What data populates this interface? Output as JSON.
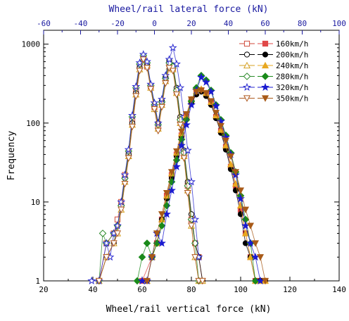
{
  "chart_data": {
    "type": "scatter",
    "x2label": "Wheel/rail lateral force (kN)",
    "xlabel": "Wheel/rail vertical force (kN)",
    "ylabel": "Frequency",
    "x2lim": [
      -60,
      100
    ],
    "x2ticks": [
      "-60",
      "-40",
      "-20",
      "0",
      "20",
      "40",
      "60",
      "80",
      "100"
    ],
    "xlim": [
      20,
      140
    ],
    "xticks": [
      "20",
      "40",
      "60",
      "80",
      "100",
      "120",
      "140"
    ],
    "ylim": [
      1,
      1500
    ],
    "yscale": "log",
    "yticks": [
      "1",
      "10",
      "100",
      "1000"
    ],
    "grid": false,
    "legend_position": "top-right",
    "lateral_series": [
      {
        "name": "160km/h",
        "marker": "square-open",
        "color": "#d04a3a",
        "x": [
          -30,
          -26,
          -22,
          -20,
          -18,
          -16,
          -14,
          -12,
          -10,
          -8,
          -6,
          -4,
          -2,
          0,
          2,
          4,
          6,
          8,
          10,
          12,
          14,
          16,
          18,
          20,
          22,
          24,
          26
        ],
        "y": [
          1,
          3,
          4,
          6,
          10,
          22,
          42,
          110,
          260,
          520,
          680,
          520,
          290,
          160,
          90,
          180,
          360,
          560,
          500,
          250,
          110,
          40,
          16,
          6,
          3,
          2,
          1
        ]
      },
      {
        "name": "200km/h",
        "marker": "circle-open",
        "color": "#000000",
        "x": [
          -30,
          -26,
          -22,
          -20,
          -18,
          -16,
          -14,
          -12,
          -10,
          -8,
          -6,
          -4,
          -2,
          0,
          2,
          4,
          6,
          8,
          10,
          12,
          14,
          16,
          18,
          20,
          22,
          24,
          26
        ],
        "y": [
          1,
          2,
          3,
          5,
          9,
          20,
          40,
          100,
          240,
          500,
          700,
          560,
          300,
          170,
          100,
          190,
          380,
          620,
          540,
          280,
          120,
          45,
          18,
          7,
          3,
          2,
          1
        ]
      },
      {
        "name": "240km/h",
        "marker": "triangle-open",
        "color": "#d4a020",
        "x": [
          -30,
          -26,
          -22,
          -20,
          -18,
          -16,
          -14,
          -12,
          -10,
          -8,
          -6,
          -4,
          -2,
          0,
          2,
          4,
          6,
          8,
          10,
          12,
          14,
          16,
          18,
          20,
          22,
          24,
          26
        ],
        "y": [
          1,
          2,
          3,
          4,
          8,
          18,
          38,
          95,
          230,
          480,
          660,
          540,
          280,
          150,
          85,
          170,
          340,
          520,
          480,
          240,
          100,
          38,
          14,
          5,
          2,
          1,
          1
        ]
      },
      {
        "name": "280km/h",
        "marker": "diamond-open",
        "color": "#2a8a2a",
        "x": [
          -30,
          -28,
          -26,
          -22,
          -20,
          -18,
          -16,
          -14,
          -12,
          -10,
          -8,
          -6,
          -4,
          -2,
          0,
          2,
          4,
          6,
          8,
          10,
          12,
          14,
          16,
          18,
          20,
          22,
          24
        ],
        "y": [
          1,
          4,
          3,
          4,
          5,
          9,
          20,
          44,
          120,
          280,
          560,
          720,
          580,
          300,
          170,
          95,
          185,
          370,
          580,
          520,
          260,
          110,
          42,
          16,
          6,
          3,
          1
        ]
      },
      {
        "name": "320km/h",
        "marker": "star-open",
        "color": "#2a2ad0",
        "x": [
          -34,
          -30,
          -26,
          -24,
          -22,
          -20,
          -18,
          -16,
          -14,
          -12,
          -10,
          -8,
          -6,
          -4,
          -2,
          0,
          2,
          4,
          6,
          8,
          10,
          12,
          14,
          16,
          18,
          20,
          22,
          24
        ],
        "y": [
          1,
          1,
          3,
          2,
          4,
          5,
          10,
          22,
          46,
          125,
          290,
          580,
          740,
          600,
          310,
          180,
          100,
          200,
          400,
          640,
          900,
          560,
          280,
          120,
          45,
          18,
          6,
          2
        ]
      },
      {
        "name": "350km/h",
        "marker": "triangle-down-open",
        "color": "#b05a20",
        "x": [
          -30,
          -26,
          -22,
          -20,
          -18,
          -16,
          -14,
          -12,
          -10,
          -8,
          -6,
          -4,
          -2,
          0,
          2,
          4,
          6,
          8,
          10,
          12,
          14,
          16,
          18,
          20,
          22,
          24,
          26
        ],
        "y": [
          1,
          2,
          3,
          4,
          8,
          17,
          36,
          90,
          220,
          460,
          640,
          500,
          270,
          150,
          80,
          160,
          320,
          500,
          460,
          230,
          95,
          36,
          13,
          5,
          2,
          1,
          1
        ]
      }
    ],
    "vertical_series": [
      {
        "name": "160km/h",
        "marker": "square-filled",
        "color": "#e04848",
        "x": [
          60,
          64,
          66,
          68,
          70,
          72,
          74,
          76,
          78,
          80,
          82,
          84,
          86,
          88,
          90,
          92,
          94,
          96,
          98,
          100,
          102,
          104,
          106,
          108,
          110
        ],
        "y": [
          1,
          2,
          3,
          6,
          12,
          22,
          40,
          70,
          120,
          190,
          240,
          260,
          230,
          180,
          120,
          80,
          50,
          28,
          16,
          8,
          4,
          2,
          1,
          1,
          1
        ]
      },
      {
        "name": "200km/h",
        "marker": "circle-filled",
        "color": "#000000",
        "x": [
          62,
          64,
          66,
          68,
          70,
          72,
          74,
          76,
          78,
          80,
          82,
          84,
          86,
          88,
          90,
          92,
          94,
          96,
          98,
          100,
          102,
          104,
          106,
          108,
          110
        ],
        "y": [
          1,
          2,
          3,
          6,
          11,
          20,
          38,
          68,
          115,
          180,
          230,
          250,
          220,
          170,
          115,
          75,
          46,
          26,
          14,
          7,
          3,
          2,
          1,
          1,
          1
        ]
      },
      {
        "name": "240km/h",
        "marker": "triangle-filled",
        "color": "#e8a820",
        "x": [
          62,
          64,
          66,
          68,
          70,
          72,
          74,
          76,
          78,
          80,
          82,
          84,
          86,
          88,
          90,
          92,
          94,
          96,
          98,
          100,
          102,
          104,
          106,
          108,
          110
        ],
        "y": [
          1,
          2,
          3,
          6,
          12,
          23,
          42,
          74,
          125,
          200,
          255,
          270,
          240,
          185,
          125,
          82,
          52,
          30,
          17,
          9,
          4,
          2,
          1,
          1,
          1
        ]
      },
      {
        "name": "280km/h",
        "marker": "diamond-filled",
        "color": "#1a8a1a",
        "x": [
          58,
          60,
          62,
          64,
          66,
          68,
          70,
          72,
          74,
          76,
          78,
          80,
          82,
          84,
          86,
          88,
          90,
          92,
          94,
          96,
          98,
          100,
          102,
          104,
          106
        ],
        "y": [
          1,
          2,
          3,
          2,
          3,
          5,
          9,
          18,
          34,
          62,
          110,
          190,
          280,
          400,
          350,
          260,
          170,
          110,
          70,
          42,
          24,
          12,
          6,
          3,
          1
        ]
      },
      {
        "name": "320km/h",
        "marker": "star-filled",
        "color": "#1a1ad0",
        "x": [
          60,
          62,
          64,
          66,
          68,
          70,
          72,
          74,
          76,
          78,
          80,
          82,
          84,
          86,
          88,
          90,
          92,
          94,
          96,
          98,
          100,
          102,
          104,
          106,
          108
        ],
        "y": [
          1,
          1,
          2,
          4,
          3,
          7,
          14,
          28,
          52,
          95,
          170,
          260,
          380,
          330,
          250,
          165,
          105,
          66,
          40,
          22,
          11,
          5,
          3,
          2,
          1
        ]
      },
      {
        "name": "350km/h",
        "marker": "triangle-down-filled",
        "color": "#a85a18",
        "x": [
          62,
          64,
          66,
          68,
          70,
          72,
          74,
          76,
          78,
          80,
          82,
          84,
          86,
          88,
          90,
          92,
          94,
          96,
          98,
          100,
          102,
          104,
          106,
          108,
          110
        ],
        "y": [
          1,
          2,
          4,
          7,
          13,
          24,
          44,
          78,
          130,
          200,
          250,
          260,
          240,
          190,
          135,
          92,
          60,
          38,
          24,
          14,
          8,
          5,
          3,
          2,
          1
        ]
      }
    ]
  }
}
